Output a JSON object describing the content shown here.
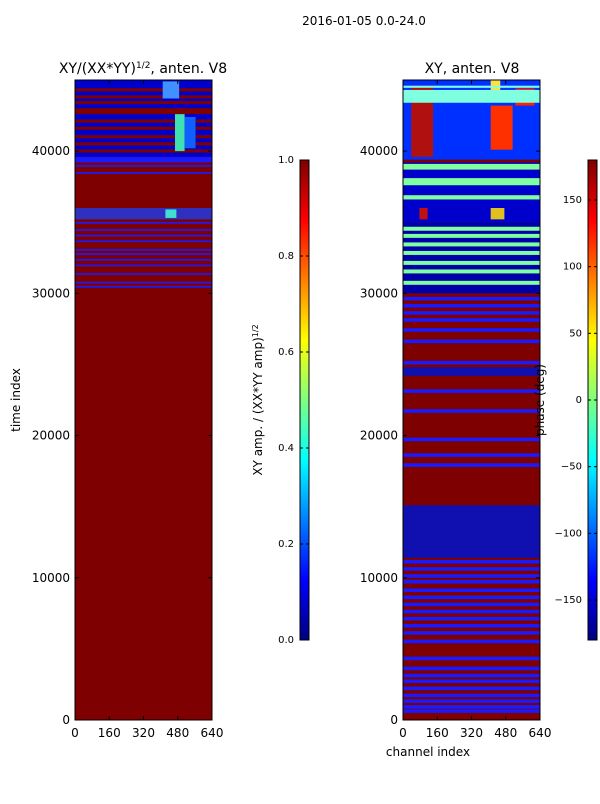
{
  "figure": {
    "suptitle": "2016-01-05 0.0-24.0"
  },
  "colormap": {
    "name": "jet",
    "stops": [
      "#00007f",
      "#0000ff",
      "#007fff",
      "#00ffff",
      "#7fff7f",
      "#ffff00",
      "#ff7f00",
      "#ff0000",
      "#7f0000"
    ]
  },
  "chart_data": [
    {
      "type": "heatmap",
      "title_main": "XY/(XX*YY)",
      "title_sup": "1/2",
      "title_tail": ", anten. V8",
      "xlabel": "",
      "ylabel": "time index",
      "x_ticks": [
        0,
        160,
        320,
        480,
        640
      ],
      "y_ticks": [
        0,
        10000,
        20000,
        30000,
        40000
      ],
      "xlim": [
        0,
        640
      ],
      "ylim": [
        0,
        45000
      ],
      "colorbar": {
        "label": "XY amp. / (XX*YY amp)",
        "label_sup": "1/2",
        "ticks": [
          "0.0",
          "0.2",
          "0.4",
          "0.6",
          "0.8",
          "1.0"
        ],
        "range": [
          0,
          1
        ]
      }
    },
    {
      "type": "heatmap",
      "title": "XY, anten. V8",
      "xlabel": "channel index",
      "ylabel": "",
      "x_ticks": [
        0,
        160,
        320,
        480,
        640
      ],
      "y_ticks": [
        0,
        10000,
        20000,
        30000,
        40000
      ],
      "xlim": [
        0,
        640
      ],
      "ylim": [
        0,
        45000
      ],
      "colorbar": {
        "label": "phase (deg)",
        "ticks": [
          "−150",
          "−100",
          "−50",
          "0",
          "50",
          "100",
          "150"
        ],
        "tick_values": [
          -150,
          -100,
          -50,
          0,
          50,
          100,
          150
        ],
        "range": [
          -180,
          180
        ]
      }
    }
  ]
}
